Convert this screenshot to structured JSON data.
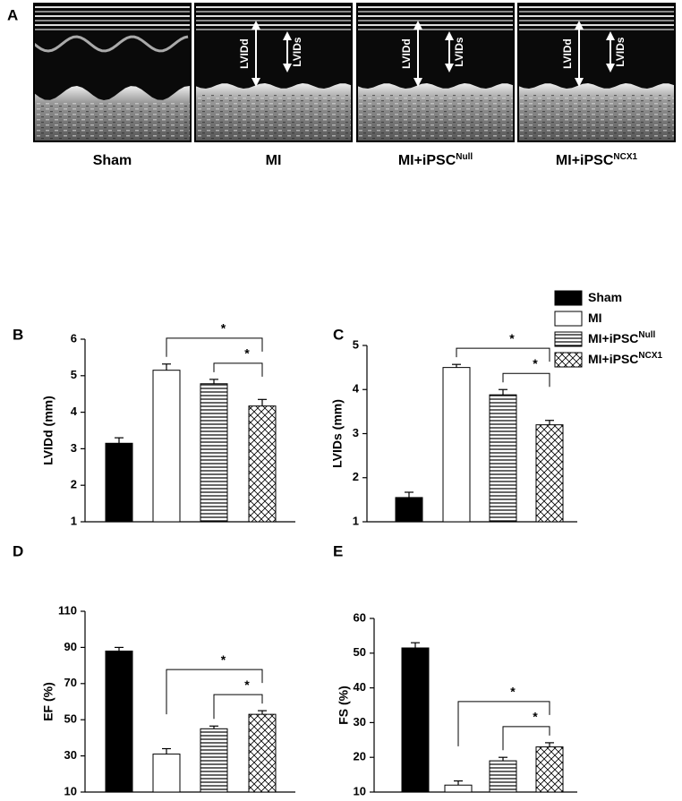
{
  "panel_a": {
    "letter": "A",
    "images": [
      {
        "label": "Sham"
      },
      {
        "label": "MI",
        "annotations": [
          "LVIDd",
          "LVIDs"
        ]
      },
      {
        "label": "MI+iPSC",
        "label_sup": "Null",
        "annotations": [
          "LVIDd",
          "LVIDs"
        ]
      },
      {
        "label": "MI+iPSC",
        "label_sup": "NCX1",
        "annotations": [
          "LVIDd",
          "LVIDs"
        ]
      }
    ]
  },
  "legend": [
    {
      "name": "Sham",
      "fill": "#000000"
    },
    {
      "name": "MI",
      "fill": "#ffffff"
    },
    {
      "name": "MI+iPSC",
      "sup": "Null",
      "fill": "horizontal"
    },
    {
      "name": "MI+iPSC",
      "sup": "NCX1",
      "fill": "crosshatch"
    }
  ],
  "chart_data": [
    {
      "type": "bar",
      "panel": "B",
      "ylabel": "LVIDd (mm)",
      "values": [
        3.15,
        5.15,
        4.78,
        4.17
      ],
      "errors": [
        0.15,
        0.17,
        0.12,
        0.18
      ],
      "ylim": [
        1,
        6
      ],
      "yticks": [
        1,
        2,
        3,
        4,
        5,
        6
      ],
      "brackets": [
        {
          "text": "*",
          "between": [
            1,
            3
          ]
        },
        {
          "text": "*",
          "between": [
            2,
            3
          ]
        }
      ]
    },
    {
      "type": "bar",
      "panel": "C",
      "ylabel": "LVIDs (mm)",
      "values": [
        1.55,
        4.5,
        3.88,
        3.2
      ],
      "errors": [
        0.12,
        0.07,
        0.12,
        0.1
      ],
      "ylim": [
        1,
        5
      ],
      "yticks": [
        1,
        2,
        3,
        4,
        5
      ],
      "brackets": [
        {
          "text": "*",
          "between": [
            1,
            3
          ]
        },
        {
          "text": "*",
          "between": [
            2,
            3
          ]
        }
      ]
    },
    {
      "type": "bar",
      "panel": "D",
      "ylabel": "EF (%)",
      "values": [
        88,
        31,
        45,
        53
      ],
      "errors": [
        2,
        3,
        1.5,
        2
      ],
      "ylim": [
        10,
        110
      ],
      "yticks": [
        10,
        30,
        50,
        70,
        90,
        110
      ],
      "brackets": [
        {
          "text": "*",
          "between": [
            1,
            3
          ]
        },
        {
          "text": "*",
          "between": [
            2,
            3
          ]
        }
      ]
    },
    {
      "type": "bar",
      "panel": "E",
      "ylabel": "FS (%)",
      "values": [
        51.5,
        12,
        19,
        23
      ],
      "errors": [
        1.5,
        1.2,
        1,
        1.2
      ],
      "ylim": [
        10,
        60
      ],
      "yticks": [
        10,
        20,
        30,
        40,
        50,
        60
      ],
      "brackets": [
        {
          "text": "*",
          "between": [
            1,
            3
          ]
        },
        {
          "text": "*",
          "between": [
            2,
            3
          ]
        }
      ]
    }
  ]
}
